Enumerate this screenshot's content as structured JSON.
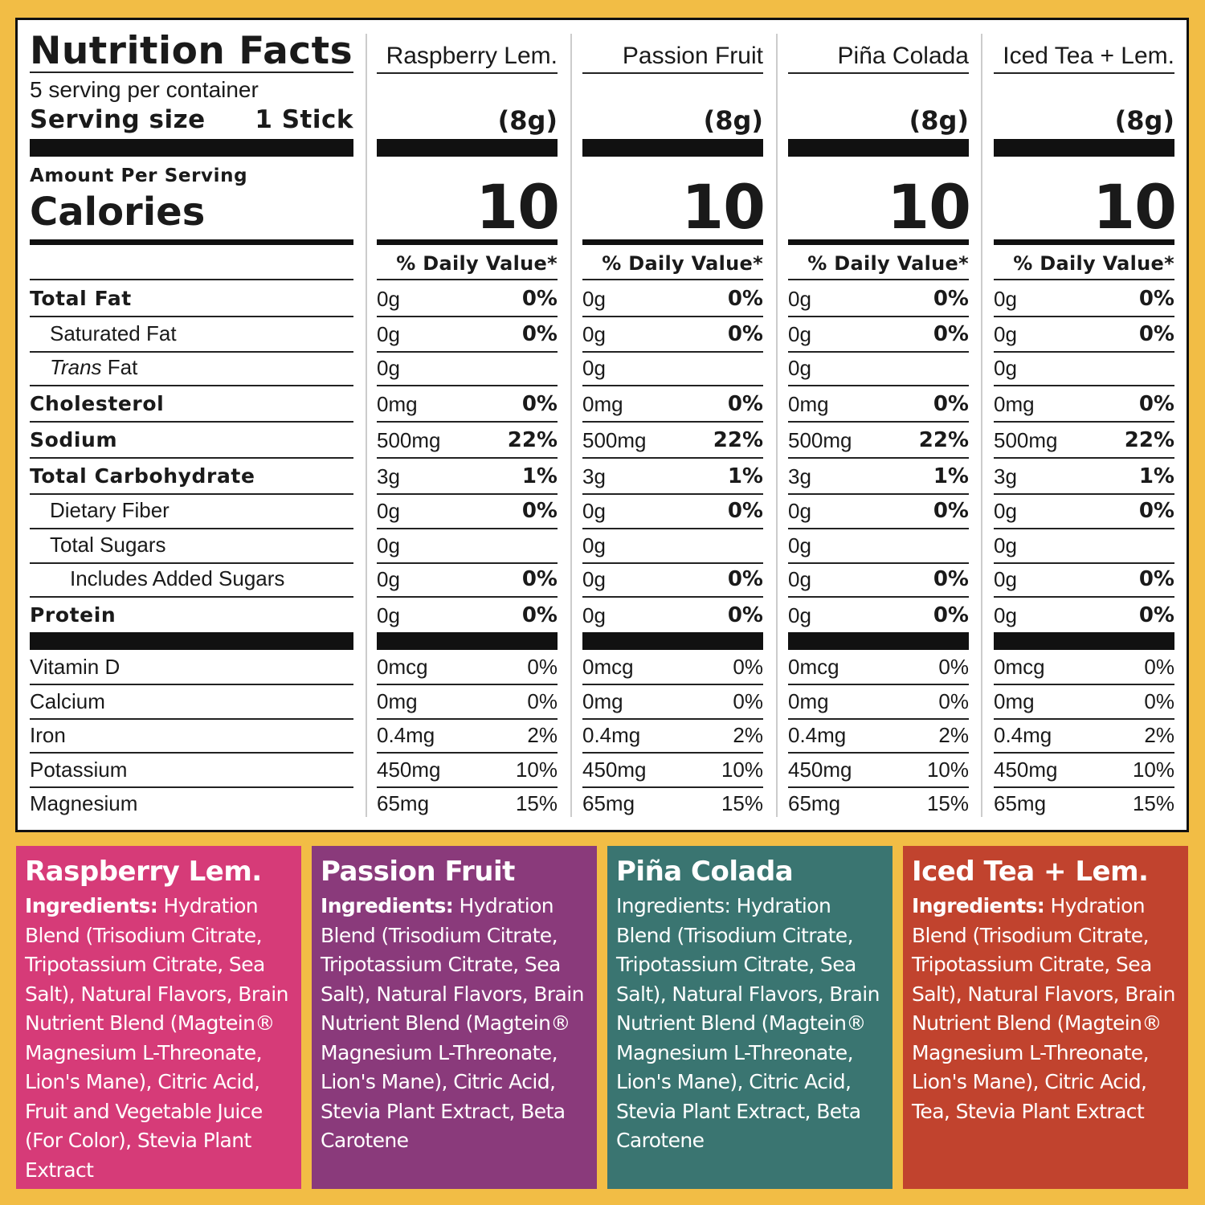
{
  "label": {
    "title": "Nutrition Facts",
    "servings": "5 serving per container",
    "serving_size_label": "Serving size",
    "serving_size": "1 Stick",
    "amount_per_serving": "Amount Per Serving",
    "calories_label": "Calories",
    "daily_value_header": "% Daily Value*"
  },
  "nutrients": [
    {
      "name": "Total Fat"
    },
    {
      "name": "Saturated Fat"
    },
    {
      "italic_prefix": "Trans",
      "name": " Fat"
    },
    {
      "name": "Cholesterol"
    },
    {
      "name": "Sodium"
    },
    {
      "name": "Total Carbohydrate"
    },
    {
      "name": "Dietary Fiber"
    },
    {
      "name": "Total Sugars"
    },
    {
      "name": "Includes Added Sugars"
    },
    {
      "name": "Protein"
    }
  ],
  "vitamins_minerals": [
    "Vitamin D",
    "Calcium",
    "Iron",
    "Potassium",
    "Magnesium"
  ],
  "ingredients_label": "Ingredients:",
  "flavors": [
    {
      "name": "Raspberry Lem.",
      "serving_weight": "(8g)",
      "calories": 10,
      "color": "#d63b78",
      "amounts": [
        "0g",
        "0g",
        "0g",
        "0mg",
        "500mg",
        "3g",
        "0g",
        "0g",
        "0g",
        "0g"
      ],
      "daily_values": [
        "0%",
        "0%",
        null,
        "0%",
        "22%",
        "1%",
        "0%",
        null,
        "0%",
        "0%"
      ],
      "mineral_amounts": [
        "0mcg",
        "0mg",
        "0.4mg",
        "450mg",
        "65mg"
      ],
      "mineral_daily_values": [
        "0%",
        "0%",
        "2%",
        "10%",
        "15%"
      ],
      "ingredients": "Hydration Blend (Trisodium Citrate, Tripotassium Citrate, Sea Salt), Natural Flavors, Brain Nutrient Blend (Magtein® Magnesium L-Threonate, Lion's Mane), Citric Acid, Fruit and Vegetable Juice (For Color), Stevia Plant Extract"
    },
    {
      "name": "Passion Fruit",
      "serving_weight": "(8g)",
      "calories": 10,
      "color": "#8a3a7b",
      "amounts": [
        "0g",
        "0g",
        "0g",
        "0mg",
        "500mg",
        "3g",
        "0g",
        "0g",
        "0g",
        "0g"
      ],
      "daily_values": [
        "0%",
        "0%",
        null,
        "0%",
        "22%",
        "1%",
        "0%",
        null,
        "0%",
        "0%"
      ],
      "mineral_amounts": [
        "0mcg",
        "0mg",
        "0.4mg",
        "450mg",
        "65mg"
      ],
      "mineral_daily_values": [
        "0%",
        "0%",
        "2%",
        "10%",
        "15%"
      ],
      "ingredients": "Hydration Blend (Trisodium Citrate, Tripotassium Citrate, Sea Salt), Natural Flavors, Brain Nutrient Blend (Magtein® Magnesium L-Threonate, Lion's Mane), Citric Acid, Stevia Plant Extract, Beta Carotene"
    },
    {
      "name": "Piña Colada",
      "serving_weight": "(8g)",
      "calories": 10,
      "color": "#3a7571",
      "amounts": [
        "0g",
        "0g",
        "0g",
        "0mg",
        "500mg",
        "3g",
        "0g",
        "0g",
        "0g",
        "0g"
      ],
      "daily_values": [
        "0%",
        "0%",
        null,
        "0%",
        "22%",
        "1%",
        "0%",
        null,
        "0%",
        "0%"
      ],
      "mineral_amounts": [
        "0mcg",
        "0mg",
        "0.4mg",
        "450mg",
        "65mg"
      ],
      "mineral_daily_values": [
        "0%",
        "0%",
        "2%",
        "10%",
        "15%"
      ],
      "ingredients": "Hydration Blend (Trisodium Citrate, Tripotassium Citrate, Sea Salt), Natural Flavors, Brain Nutrient Blend (Magtein® Magnesium L-Threonate, Lion's Mane), Citric Acid, Stevia Plant Extract, Beta Carotene"
    },
    {
      "name": "Iced Tea + Lem.",
      "serving_weight": "(8g)",
      "calories": 10,
      "color": "#c1432e",
      "amounts": [
        "0g",
        "0g",
        "0g",
        "0mg",
        "500mg",
        "3g",
        "0g",
        "0g",
        "0g",
        "0g"
      ],
      "daily_values": [
        "0%",
        "0%",
        null,
        "0%",
        "22%",
        "1%",
        "0%",
        null,
        "0%",
        "0%"
      ],
      "mineral_amounts": [
        "0mcg",
        "0mg",
        "0.4mg",
        "450mg",
        "65mg"
      ],
      "mineral_daily_values": [
        "0%",
        "0%",
        "2%",
        "10%",
        "15%"
      ],
      "ingredients": "Hydration Blend (Trisodium Citrate, Tripotassium Citrate, Sea Salt), Natural Flavors, Brain Nutrient Blend (Magtein® Magnesium L-Threonate, Lion's Mane), Citric Acid, Tea, Stevia Plant Extract"
    }
  ]
}
